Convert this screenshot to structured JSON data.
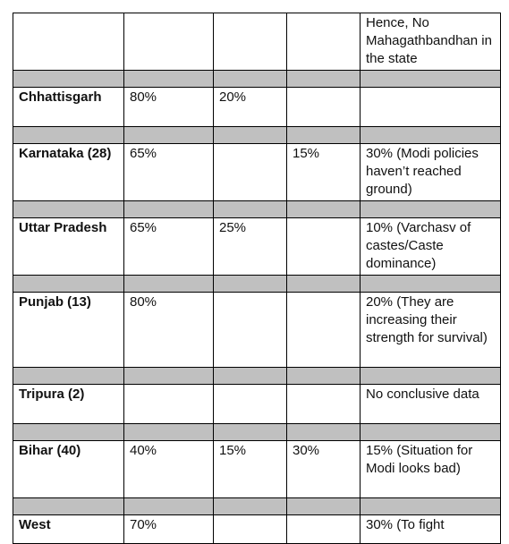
{
  "rows": [
    {
      "state": "",
      "c1": "",
      "c2": "",
      "c3": "",
      "note": "Hence, No Mahagathbandhan in the state"
    },
    {
      "state": "Chhattisgarh",
      "c1": "80%",
      "c2": "20%",
      "c3": "",
      "note": ""
    },
    {
      "state": "Karnataka (28)",
      "c1": "65%",
      "c2": "",
      "c3": "15%",
      "note": "30% (Modi policies haven’t reached ground)"
    },
    {
      "state": "Uttar Pradesh",
      "c1": "65%",
      "c2": "25%",
      "c3": "",
      "note": "10% (Varchasv of castes/Caste dominance)"
    },
    {
      "state": "Punjab (13)",
      "c1": "80%",
      "c2": "",
      "c3": "",
      "note": "20% (They are increasing their strength for survival)"
    },
    {
      "state": "Tripura (2)",
      "c1": "",
      "c2": "",
      "c3": "",
      "note": "No conclusive data"
    },
    {
      "state": "Bihar (40)",
      "c1": "40%",
      "c2": "15%",
      "c3": "30%",
      "note": "15% (Situation for Modi looks bad)"
    },
    {
      "state": "West",
      "c1": "70%",
      "c2": "",
      "c3": "",
      "note": "30% (To fight"
    }
  ]
}
